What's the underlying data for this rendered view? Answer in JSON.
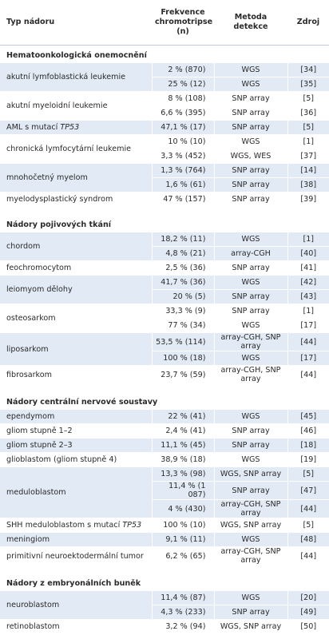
{
  "header": [
    "Typ nádoru",
    "Frekvence chromotripse (n)",
    "Metoda detekce",
    "Zdroj"
  ],
  "sections": [
    {
      "title": "Hematoonkologická onemocnění",
      "tumors": [
        {
          "name": "akutní lymfoblastická leukemie",
          "entries": [
            [
              "2 % (870)",
              "WGS",
              "[34]"
            ],
            [
              "25 % (12)",
              "WGS",
              "[35]"
            ]
          ]
        },
        {
          "name": "akutní myeloidní leukemie",
          "entries": [
            [
              "8 % (108)",
              "SNP array",
              "[5]"
            ],
            [
              "6,6 % (395)",
              "SNP array",
              "[36]"
            ]
          ]
        },
        {
          "name": "AML s mutací",
          "name_em": "TP53",
          "entries": [
            [
              "47,1 % (17)",
              "SNP array",
              "[5]"
            ]
          ]
        },
        {
          "name": "chronická lymfocytární leukemie",
          "entries": [
            [
              "10 % (10)",
              "WGS",
              "[1]"
            ],
            [
              "3,3 % (452)",
              "WGS, WES",
              "[37]"
            ]
          ]
        },
        {
          "name": "mnohočetný myelom",
          "entries": [
            [
              "1,3 % (764)",
              "SNP array",
              "[14]"
            ],
            [
              "1,6 % (61)",
              "SNP array",
              "[38]"
            ]
          ]
        },
        {
          "name": "myelodysplastický syndrom",
          "entries": [
            [
              "47 % (157)",
              "SNP array",
              "[39]"
            ]
          ]
        }
      ]
    },
    {
      "title": "Nádory pojivových tkání",
      "tumors": [
        {
          "name": "chordom",
          "entries": [
            [
              "18,2 % (11)",
              "WGS",
              "[1]"
            ],
            [
              "4,8 % (21)",
              "array-CGH",
              "[40]"
            ]
          ]
        },
        {
          "name": "feochromocytom",
          "entries": [
            [
              "2,5 % (36)",
              "SNP array",
              "[41]"
            ]
          ]
        },
        {
          "name": "leiomyom dělohy",
          "entries": [
            [
              "41,7 % (36)",
              "WGS",
              "[42]"
            ],
            [
              "20 % (5)",
              "SNP array",
              "[43]"
            ]
          ]
        },
        {
          "name": "osteosarkom",
          "entries": [
            [
              "33,3 % (9)",
              "SNP array",
              "[1]"
            ],
            [
              "77 % (34)",
              "WGS",
              "[17]"
            ]
          ]
        },
        {
          "name": "liposarkom",
          "entries": [
            [
              "53,5 % (114)",
              "array-CGH, SNP array",
              "[44]"
            ],
            [
              "100 % (18)",
              "WGS",
              "[17]"
            ]
          ]
        },
        {
          "name": "fibrosarkom",
          "entries": [
            [
              "23,7 % (59)",
              "array-CGH, SNP array",
              "[44]"
            ]
          ]
        }
      ]
    },
    {
      "title": "Nádory centrální nervové soustavy",
      "tumors": [
        {
          "name": "ependymom",
          "entries": [
            [
              "22 % (41)",
              "WGS",
              "[45]"
            ]
          ]
        },
        {
          "name": "gliom stupně 1–2",
          "entries": [
            [
              "2,4 % (41)",
              "SNP array",
              "[46]"
            ]
          ]
        },
        {
          "name": "gliom stupně 2–3",
          "entries": [
            [
              "11,1 % (45)",
              "SNP array",
              "[18]"
            ]
          ]
        },
        {
          "name": "glioblastom (gliom stupně 4)",
          "entries": [
            [
              "38,9 % (18)",
              "WGS",
              "[19]"
            ]
          ]
        },
        {
          "name": "meduloblastom",
          "entries": [
            [
              "13,3 % (98)",
              "WGS, SNP array",
              "[5]"
            ],
            [
              "11,4 % (1 087)",
              "SNP array",
              "[47]"
            ],
            [
              "4 % (430)",
              "array-CGH, SNP array",
              "[44]"
            ]
          ]
        },
        {
          "name": "SHH meduloblastom s mutací",
          "name_em": "TP53",
          "entries": [
            [
              "100 % (10)",
              "WGS, SNP array",
              "[5]"
            ]
          ]
        },
        {
          "name": "meningiom",
          "entries": [
            [
              "9,1 % (11)",
              "WGS",
              "[48]"
            ]
          ]
        },
        {
          "name": "primitivní neuroektodermální tumor",
          "entries": [
            [
              "6,2 % (65)",
              "array-CGH, SNP array",
              "[44]"
            ]
          ]
        }
      ]
    },
    {
      "title": "Nádory z embryonálních buněk",
      "tumors": [
        {
          "name": "neuroblastom",
          "entries": [
            [
              "11,4 % (87)",
              "WGS",
              "[20]"
            ],
            [
              "4,3 % (233)",
              "SNP array",
              "[49]"
            ]
          ]
        },
        {
          "name": "retinoblastom",
          "entries": [
            [
              "3,2 % (94)",
              "WGS, SNP array",
              "[50]"
            ]
          ]
        }
      ]
    }
  ]
}
